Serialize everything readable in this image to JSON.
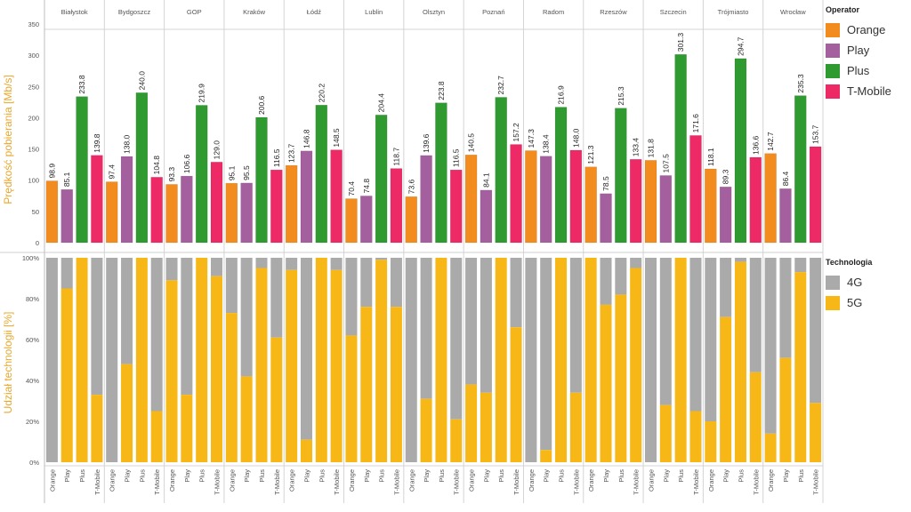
{
  "chart_data": [
    {
      "type": "bar",
      "ylabel": "Prędkość pobierania [Mb/s]",
      "ylim": [
        0,
        350
      ],
      "yticks": [
        0,
        50,
        100,
        150,
        200,
        250,
        300,
        350
      ],
      "cities": [
        "Białystok",
        "Bydgoszcz",
        "GOP",
        "Kraków",
        "Łódź",
        "Lublin",
        "Olsztyn",
        "Poznań",
        "Radom",
        "Rzeszów",
        "Szczecin",
        "Trójmiasto",
        "Wrocław"
      ],
      "operators": [
        "Orange",
        "Play",
        "Plus",
        "T-Mobile"
      ],
      "series": [
        {
          "name": "Orange",
          "values": [
            98.9,
            97.4,
            93.3,
            95.1,
            123.7,
            70.4,
            73.6,
            140.5,
            147.3,
            121.3,
            131.8,
            118.1,
            142.7
          ]
        },
        {
          "name": "Play",
          "values": [
            85.1,
            138.0,
            106.6,
            95.5,
            146.8,
            74.8,
            139.6,
            84.1,
            138.4,
            78.5,
            107.5,
            89.3,
            86.4
          ]
        },
        {
          "name": "Plus",
          "values": [
            233.8,
            240.0,
            219.9,
            200.6,
            220.2,
            204.4,
            223.8,
            232.7,
            216.9,
            215.3,
            301.3,
            294.7,
            235.3
          ]
        },
        {
          "name": "T-Mobile",
          "values": [
            139.8,
            104.8,
            129.0,
            116.5,
            148.5,
            118.7,
            116.5,
            157.2,
            148.0,
            133.4,
            171.6,
            136.6,
            153.7
          ]
        }
      ],
      "labels": {
        "Orange": [
          "98.9",
          "97.4",
          "93.3",
          "95.1",
          "123.7",
          "70.4",
          "73.6",
          "140.5",
          "147.3",
          "121.3",
          "131.8",
          "118.1",
          "142.7"
        ],
        "Play": [
          "85.1",
          "138.0",
          "106.6",
          "95.5",
          "146.8",
          "74.8",
          "139.6",
          "84.1",
          "138.4",
          "78.5",
          "107.5",
          "89.3",
          "86.4"
        ],
        "Plus": [
          "233.8",
          "240.0",
          "219.9",
          "200.6",
          "220.2",
          "204.4",
          "223.8",
          "232.7",
          "216.9",
          "215.3",
          "301.3",
          "294.7",
          "235.3"
        ],
        "T-Mobile": [
          "139.8",
          "104.8",
          "129.0",
          "116.5",
          "148.5",
          "118.7",
          "116.5",
          "157.2",
          "148.0",
          "133.4",
          "171.6",
          "136.6",
          "153.7"
        ]
      }
    },
    {
      "type": "bar",
      "stacked": true,
      "ylabel": "Udział technologii [%]",
      "ylim": [
        0,
        100
      ],
      "yticks": [
        "0%",
        "20%",
        "40%",
        "60%",
        "80%",
        "100%"
      ],
      "series_5g_pct": {
        "Białystok": [
          0,
          85,
          100,
          33
        ],
        "Bydgoszcz": [
          0,
          48,
          100,
          25
        ],
        "GOP": [
          89,
          33,
          100,
          91
        ],
        "Kraków": [
          73,
          42,
          95,
          61
        ],
        "Łódź": [
          94,
          11,
          100,
          94
        ],
        "Lublin": [
          62,
          76,
          99,
          76
        ],
        "Olsztyn": [
          0,
          31,
          100,
          21
        ],
        "Poznań": [
          38,
          34,
          100,
          66
        ],
        "Radom": [
          0,
          6,
          100,
          34
        ],
        "Rzeszów": [
          100,
          77,
          82,
          95
        ],
        "Szczecin": [
          0,
          28,
          100,
          25
        ],
        "Trójmiasto": [
          20,
          71,
          98,
          44
        ],
        "Wrocław": [
          14,
          51,
          93,
          29
        ]
      }
    }
  ],
  "legend_operator": {
    "title": "Operator",
    "items": [
      {
        "label": "Orange",
        "color": "#F28C1E"
      },
      {
        "label": "Play",
        "color": "#A4609E"
      },
      {
        "label": "Plus",
        "color": "#2F9A2F"
      },
      {
        "label": "T-Mobile",
        "color": "#EE2A66"
      }
    ]
  },
  "legend_tech": {
    "title": "Technologia",
    "items": [
      {
        "label": "4G",
        "color": "#AAAAAA"
      },
      {
        "label": "5G",
        "color": "#F7B817"
      }
    ]
  }
}
